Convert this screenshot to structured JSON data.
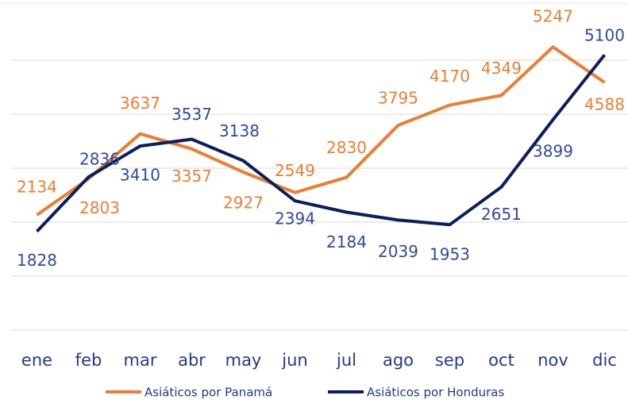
{
  "chart_data": {
    "type": "line",
    "categories": [
      "ene",
      "feb",
      "mar",
      "abr",
      "may",
      "jun",
      "jul",
      "ago",
      "sep",
      "oct",
      "nov",
      "dic"
    ],
    "series": [
      {
        "name": "Asiáticos por Panamá",
        "color": "#ed7d31",
        "values": [
          2134,
          2803,
          3637,
          3357,
          2927,
          2549,
          2830,
          3795,
          4170,
          4349,
          5247,
          4588
        ]
      },
      {
        "name": "Asiáticos por Honduras",
        "color": "#0c1f5c",
        "values": [
          1828,
          2836,
          3410,
          3537,
          3138,
          2394,
          2184,
          2039,
          1953,
          2651,
          3899,
          5100
        ]
      }
    ],
    "ylim": [
      0,
      6000
    ],
    "yticks": [
      0,
      1000,
      2000,
      3000,
      4000,
      5000
    ],
    "grid": true,
    "legend": "bottom"
  }
}
